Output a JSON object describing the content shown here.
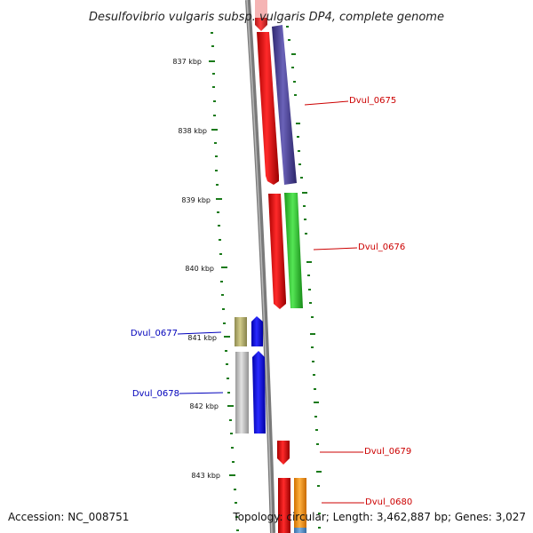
{
  "title": "Desulfovibrio vulgaris subsp. vulgaris DP4, complete genome",
  "ticks": [
    "837 kbp",
    "838 kbp",
    "839 kbp",
    "840 kbp",
    "841 kbp",
    "842 kbp",
    "843 kbp"
  ],
  "genes": {
    "right": [
      "Dvul_0675",
      "Dvul_0676",
      "Dvul_0679",
      "Dvul_0680"
    ],
    "left": [
      "Dvul_0677",
      "Dvul_0678"
    ]
  },
  "footer": {
    "accession": "Accession: NC_008751",
    "topology": "Topology: circular; Length: 3,462,887 bp; Genes: 3,027"
  },
  "colors": {
    "right_label": "#cc0000",
    "left_label": "#0000bb",
    "tick": "#1a7a1a",
    "backbone": "#777777"
  }
}
